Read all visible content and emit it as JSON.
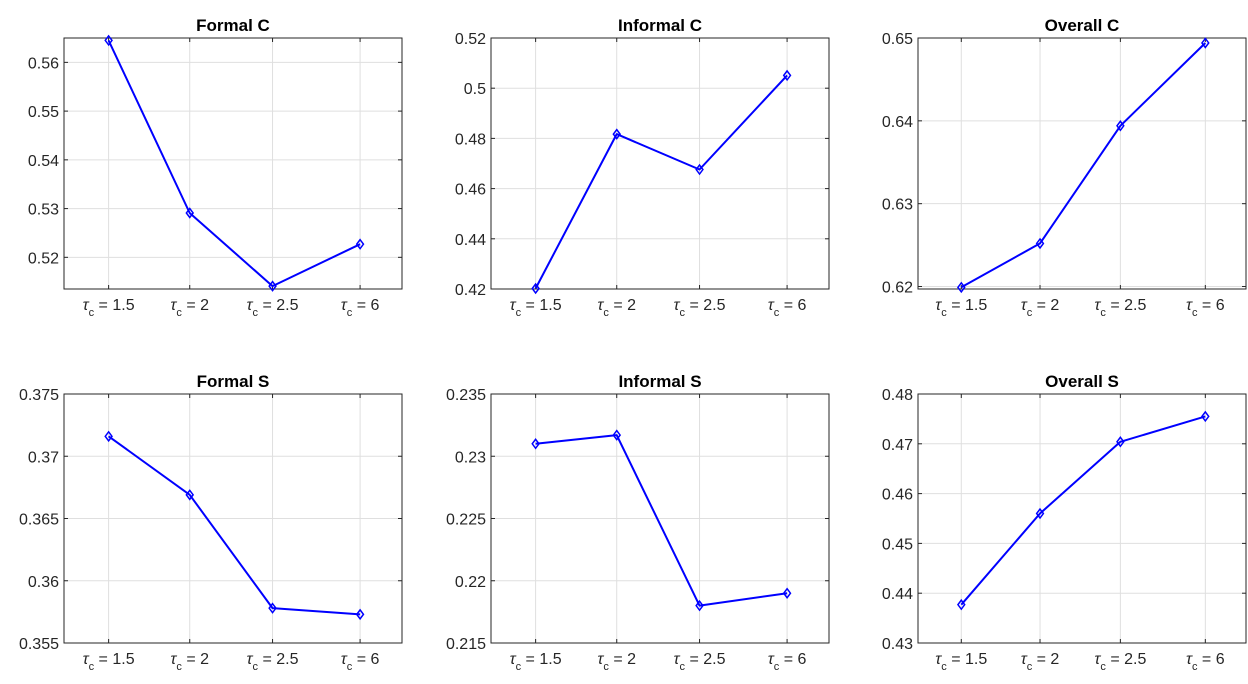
{
  "chart_data": [
    {
      "type": "line",
      "title": "Formal C",
      "categories": [
        "1.5",
        "2",
        "2.5",
        "6"
      ],
      "x_label_prefix": "τ",
      "x_label_sub": "c",
      "x_label_eq": " = ",
      "values": [
        0.5645,
        0.5291,
        0.5141,
        0.5227
      ],
      "ylim": [
        0.5135,
        0.565
      ],
      "yticks": [
        0.52,
        0.53,
        0.54,
        0.55,
        0.56
      ],
      "ytick_labels": [
        "0.52",
        "0.53",
        "0.54",
        "0.55",
        "0.56"
      ],
      "grid": true,
      "color": "#0000ff",
      "marker": "diamond"
    },
    {
      "type": "line",
      "title": "Informal C",
      "categories": [
        "1.5",
        "2",
        "2.5",
        "6"
      ],
      "x_label_prefix": "τ",
      "x_label_sub": "c",
      "x_label_eq": " = ",
      "values": [
        0.4202,
        0.4817,
        0.4676,
        0.5051
      ],
      "ylim": [
        0.42,
        0.52
      ],
      "yticks": [
        0.42,
        0.44,
        0.46,
        0.48,
        0.5,
        0.52
      ],
      "ytick_labels": [
        "0.42",
        "0.44",
        "0.46",
        "0.48",
        "0.5",
        "0.52"
      ],
      "grid": true,
      "color": "#0000ff",
      "marker": "diamond"
    },
    {
      "type": "line",
      "title": "Overall C",
      "categories": [
        "1.5",
        "2",
        "2.5",
        "6"
      ],
      "x_label_prefix": "τ",
      "x_label_sub": "c",
      "x_label_eq": " = ",
      "values": [
        0.6199,
        0.6252,
        0.6394,
        0.6494
      ],
      "ylim": [
        0.6197,
        0.65
      ],
      "yticks": [
        0.62,
        0.63,
        0.64,
        0.65
      ],
      "ytick_labels": [
        "0.62",
        "0.63",
        "0.64",
        "0.65"
      ],
      "grid": true,
      "color": "#0000ff",
      "marker": "diamond"
    },
    {
      "type": "line",
      "title": "Formal S",
      "categories": [
        "1.5",
        "2",
        "2.5",
        "6"
      ],
      "x_label_prefix": "τ",
      "x_label_sub": "c",
      "x_label_eq": " = ",
      "values": [
        0.3716,
        0.3669,
        0.3578,
        0.3573
      ],
      "ylim": [
        0.355,
        0.375
      ],
      "yticks": [
        0.355,
        0.36,
        0.365,
        0.37,
        0.375
      ],
      "ytick_labels": [
        "0.355",
        "0.36",
        "0.365",
        "0.37",
        "0.375"
      ],
      "grid": true,
      "color": "#0000ff",
      "marker": "diamond"
    },
    {
      "type": "line",
      "title": "Informal S",
      "categories": [
        "1.5",
        "2",
        "2.5",
        "6"
      ],
      "x_label_prefix": "τ",
      "x_label_sub": "c",
      "x_label_eq": " = ",
      "values": [
        0.231,
        0.2317,
        0.218,
        0.219
      ],
      "ylim": [
        0.215,
        0.235
      ],
      "yticks": [
        0.215,
        0.22,
        0.225,
        0.23,
        0.235
      ],
      "ytick_labels": [
        "0.215",
        "0.22",
        "0.225",
        "0.23",
        "0.235"
      ],
      "grid": true,
      "color": "#0000ff",
      "marker": "diamond"
    },
    {
      "type": "line",
      "title": "Overall S",
      "categories": [
        "1.5",
        "2",
        "2.5",
        "6"
      ],
      "x_label_prefix": "τ",
      "x_label_sub": "c",
      "x_label_eq": " = ",
      "values": [
        0.4377,
        0.456,
        0.4704,
        0.4755
      ],
      "ylim": [
        0.43,
        0.48
      ],
      "yticks": [
        0.43,
        0.44,
        0.45,
        0.46,
        0.47,
        0.48
      ],
      "ytick_labels": [
        "0.43",
        "0.44",
        "0.45",
        "0.46",
        "0.47",
        "0.48"
      ],
      "grid": true,
      "color": "#0000ff",
      "marker": "diamond"
    }
  ]
}
